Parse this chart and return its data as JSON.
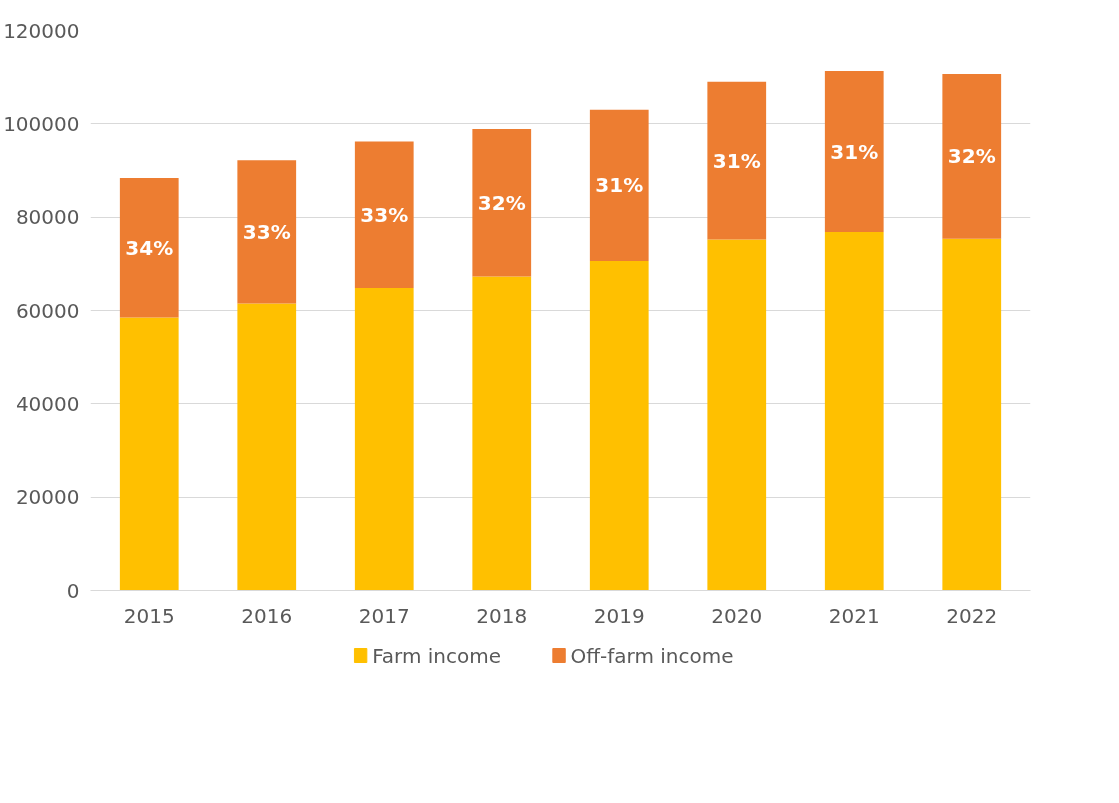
{
  "chart_data": {
    "type": "bar",
    "stacked": true,
    "categories": [
      "2015",
      "2016",
      "2017",
      "2018",
      "2019",
      "2020",
      "2021",
      "2022"
    ],
    "series": [
      {
        "name": "Farm income",
        "color": "#ffc000",
        "values": [
          58500,
          61500,
          64800,
          67300,
          70600,
          75200,
          76800,
          75400
        ]
      },
      {
        "name": "Off-farm income",
        "color": "#ed7d31",
        "values": [
          29900,
          30700,
          31400,
          31600,
          32400,
          33800,
          34500,
          35300
        ]
      }
    ],
    "annotations": [
      "34%",
      "33%",
      "33%",
      "32%",
      "31%",
      "31%",
      "31%",
      "32%"
    ],
    "ylim": [
      0,
      120000
    ],
    "yticks": [
      0,
      20000,
      40000,
      60000,
      80000,
      100000,
      120000
    ],
    "grid": "y",
    "legend": "bottom"
  }
}
